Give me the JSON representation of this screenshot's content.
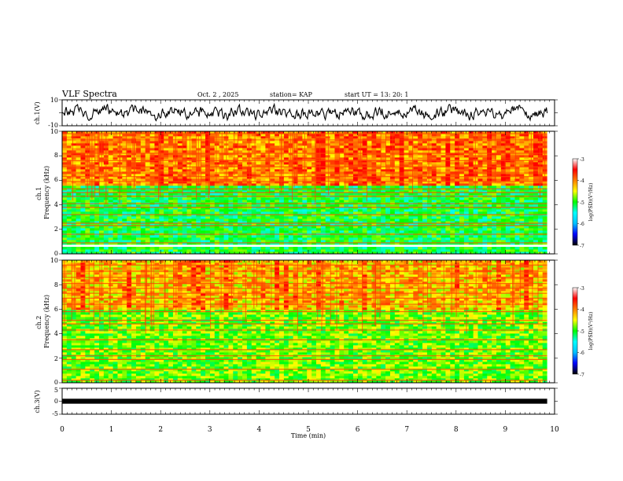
{
  "header": {
    "title": "VLF Spectra",
    "date": "Oct. 2 , 2025",
    "station": "station= KAP",
    "start": "start UT =  13: 20: 1"
  },
  "chart_data": [
    {
      "type": "line",
      "name": "ch1-waveform",
      "ylabel": "ch.1(V)",
      "ylim": [
        -10,
        10
      ],
      "yticks": [
        "10",
        "-10"
      ],
      "xlim": [
        0,
        10
      ],
      "baseline": 0,
      "amplitude": 5,
      "sample_count": 600,
      "line_end_time": 9.85,
      "color": "#000000"
    },
    {
      "type": "heatmap",
      "name": "ch1-spectrogram",
      "ylabel": "ch.1\nFrequency (kHz)",
      "ylim": [
        0,
        10
      ],
      "yticks": [
        "0",
        "2",
        "4",
        "6",
        "8",
        "10"
      ],
      "xlim": [
        0,
        10
      ],
      "data_end_time": 9.85,
      "colorbar": {
        "label": "log(PSD)(V²/Hz)",
        "range": [
          -7,
          -3
        ],
        "ticks": [
          "-3",
          "-4",
          "-5",
          "-6",
          "-7"
        ],
        "colors": [
          "#000000",
          "#0000ff",
          "#00bfff",
          "#00ffff",
          "#00ff00",
          "#ffff00",
          "#ff8000",
          "#ff0000",
          "#ffffff"
        ]
      },
      "gap_band_khz": [
        0.5,
        0.75
      ],
      "background_level": -4.8,
      "high_band_khz": [
        5.5,
        10
      ],
      "high_band_level": -3.6,
      "lines_khz": [
        0.9,
        1.6,
        2.3,
        2.5,
        3.2,
        3.8,
        4.1,
        4.7,
        5.0,
        5.3,
        5.9,
        6.3,
        6.6,
        7.1,
        7.6,
        8.2,
        9.3,
        9.8
      ]
    },
    {
      "type": "heatmap",
      "name": "ch2-spectrogram",
      "ylabel": "ch.2\nFrequency (kHz)",
      "ylim": [
        0,
        10
      ],
      "yticks": [
        "0",
        "2",
        "4",
        "6",
        "8",
        "10"
      ],
      "xlim": [
        0,
        10
      ],
      "data_end_time": 9.85,
      "colorbar": {
        "label": "log(PSD)(V²/Hz)",
        "range": [
          -7,
          -3
        ],
        "ticks": [
          "-3",
          "-4",
          "-5",
          "-6",
          "-7"
        ],
        "colors": [
          "#000000",
          "#0000ff",
          "#00bfff",
          "#00ffff",
          "#00ff00",
          "#ffff00",
          "#ff8000",
          "#ff0000",
          "#ffffff"
        ]
      },
      "background_level": -4.5,
      "high_band_khz": [
        6,
        10
      ],
      "high_band_level": -3.9,
      "lines_khz": [
        0.2,
        1.1,
        1.9,
        2.2,
        2.7,
        3.5,
        4.3,
        4.8,
        5.1,
        5.8,
        6.4,
        6.9,
        7.3,
        7.7,
        8.1,
        8.6,
        9.1,
        9.6
      ]
    },
    {
      "type": "line",
      "name": "ch3-waveform",
      "ylabel": "ch.3(V)",
      "ylim": [
        -5,
        5
      ],
      "yticks": [
        "5",
        "0",
        "-5"
      ],
      "xlim": [
        0,
        10
      ],
      "band": [
        -0.5,
        0.5
      ],
      "line_end_time": 9.85,
      "color": "#000000"
    }
  ],
  "xaxis": {
    "label": "Time (min)",
    "ticks": [
      "0",
      "1",
      "2",
      "3",
      "4",
      "5",
      "6",
      "7",
      "8",
      "9",
      "10"
    ]
  }
}
